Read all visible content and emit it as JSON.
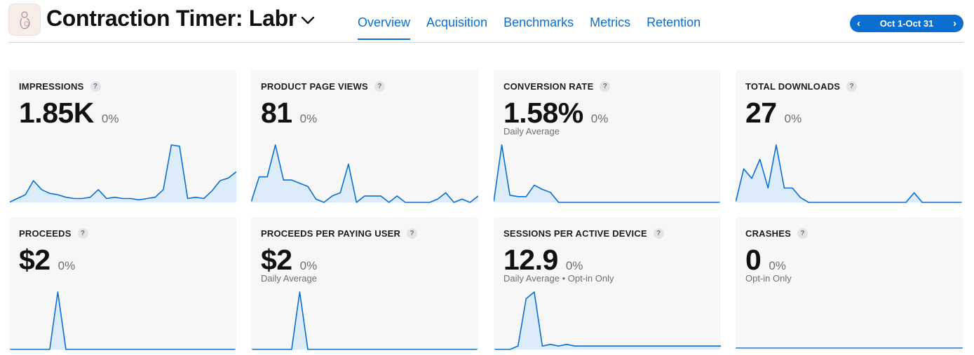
{
  "header": {
    "title": "Contraction Timer: Labr",
    "tabs": [
      {
        "label": "Overview",
        "active": true
      },
      {
        "label": "Acquisition",
        "active": false
      },
      {
        "label": "Benchmarks",
        "active": false
      },
      {
        "label": "Metrics",
        "active": false
      },
      {
        "label": "Retention",
        "active": false
      }
    ],
    "date_range": "Oct 1-Oct 31",
    "accent_color": "#0a6fd1"
  },
  "cards": [
    {
      "label": "IMPRESSIONS",
      "help": "?",
      "value": "1.85K",
      "delta": "0%",
      "subtext": "",
      "series": [
        0,
        3,
        6,
        17,
        10,
        7,
        6,
        4,
        3,
        3,
        4,
        10,
        3,
        4,
        3,
        3,
        2,
        3,
        4,
        10,
        45,
        44,
        3,
        4,
        3,
        9,
        17,
        19,
        24
      ]
    },
    {
      "label": "PRODUCT PAGE VIEWS",
      "help": "?",
      "value": "81",
      "delta": "0%",
      "subtext": "",
      "series": [
        0,
        8,
        8,
        18,
        7,
        7,
        6,
        5,
        1,
        0,
        2,
        3,
        12,
        0,
        2,
        2,
        2,
        0,
        2,
        0,
        0,
        0,
        0,
        1,
        3,
        0,
        1,
        0,
        2
      ]
    },
    {
      "label": "CONVERSION RATE",
      "help": "?",
      "value": "1.58%",
      "delta": "0%",
      "subtext": "Daily Average",
      "series": [
        0,
        40,
        5,
        4,
        4,
        12,
        9,
        7,
        0,
        0,
        0,
        0,
        0,
        0,
        0,
        0,
        0,
        0,
        0,
        0,
        0,
        0,
        0,
        0,
        0,
        0,
        0,
        0,
        0
      ]
    },
    {
      "label": "TOTAL DOWNLOADS",
      "help": "?",
      "value": "27",
      "delta": "0%",
      "subtext": "",
      "series": [
        0,
        7,
        5,
        9,
        3,
        12,
        3,
        3,
        1,
        0,
        0,
        0,
        0,
        0,
        0,
        0,
        0,
        0,
        0,
        0,
        0,
        0,
        2,
        0,
        0,
        0,
        0,
        0,
        0
      ]
    },
    {
      "label": "PROCEEDS",
      "help": "?",
      "value": "$2",
      "delta": "0%",
      "subtext": "",
      "series": [
        0,
        0,
        0,
        0,
        0,
        0,
        2,
        0,
        0,
        0,
        0,
        0,
        0,
        0,
        0,
        0,
        0,
        0,
        0,
        0,
        0,
        0,
        0,
        0,
        0,
        0,
        0,
        0,
        0
      ]
    },
    {
      "label": "PROCEEDS PER PAYING USER",
      "help": "?",
      "value": "$2",
      "delta": "0%",
      "subtext": "Daily Average",
      "series": [
        0,
        0,
        0,
        0,
        0,
        0,
        2,
        0,
        0,
        0,
        0,
        0,
        0,
        0,
        0,
        0,
        0,
        0,
        0,
        0,
        0,
        0,
        0,
        0,
        0,
        0,
        0,
        0,
        0
      ]
    },
    {
      "label": "SESSIONS PER ACTIVE DEVICE",
      "help": "?",
      "value": "12.9",
      "delta": "0%",
      "subtext": "Daily Average • Opt-in Only",
      "series": [
        0,
        0,
        0,
        1,
        15,
        17,
        1,
        1.5,
        1,
        1.5,
        1,
        1,
        1,
        1,
        1,
        1,
        1,
        1,
        1,
        1,
        1,
        1,
        1,
        1,
        1,
        1,
        1,
        1,
        1
      ]
    },
    {
      "label": "CRASHES",
      "help": "?",
      "value": "0",
      "delta": "0%",
      "subtext": "Opt-in Only",
      "series": []
    }
  ]
}
